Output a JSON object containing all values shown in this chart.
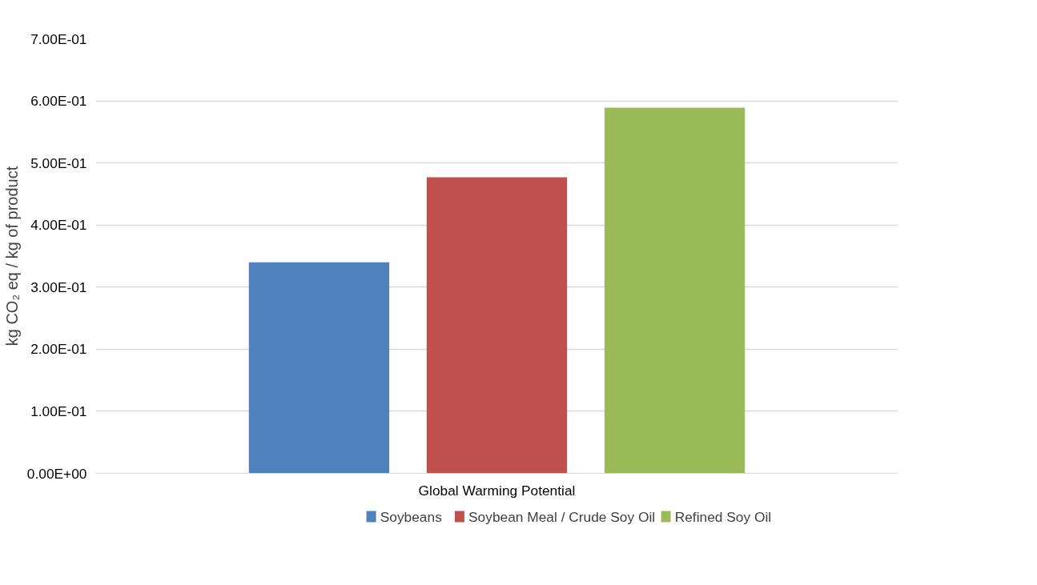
{
  "chart_data": {
    "type": "bar",
    "categories": [
      "Global Warming Potential"
    ],
    "ylabel": "kg CO₂ eq / kg of product",
    "series": [
      {
        "name": "Soybeans",
        "color": "#4f81bd",
        "values": [
          0.34
        ]
      },
      {
        "name": "Soybean Meal / Crude Soy Oil",
        "color": "#c0504d",
        "values": [
          0.477
        ]
      },
      {
        "name": "Refined Soy Oil",
        "color": "#9bbb59",
        "values": [
          0.589
        ]
      }
    ],
    "ylim": [
      0,
      0.7
    ],
    "yticks": [
      {
        "value": 0,
        "label": "0.00E+00"
      },
      {
        "value": 0.1,
        "label": "1.00E-01"
      },
      {
        "value": 0.2,
        "label": "2.00E-01"
      },
      {
        "value": 0.3,
        "label": "3.00E-01"
      },
      {
        "value": 0.4,
        "label": "4.00E-01"
      },
      {
        "value": 0.5,
        "label": "5.00E-01"
      },
      {
        "value": 0.6,
        "label": "6.00E-01"
      },
      {
        "value": 0.7,
        "label": "7.00E-01"
      }
    ],
    "grid": "y",
    "legend": "bottom"
  }
}
